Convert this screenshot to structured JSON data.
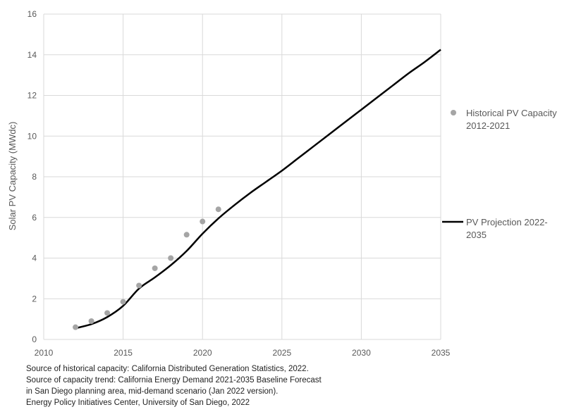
{
  "chart_data": {
    "type": "scatter",
    "title": "",
    "xlabel": "",
    "ylabel": "Solar PV Capacity (MWdc)",
    "xlim": [
      2010,
      2035
    ],
    "ylim": [
      0,
      16
    ],
    "x_ticks": [
      2010,
      2015,
      2020,
      2025,
      2030,
      2035
    ],
    "y_ticks": [
      0,
      2,
      4,
      6,
      8,
      10,
      12,
      14,
      16
    ],
    "grid": true,
    "legend_position": "right",
    "series": [
      {
        "name": "Historical PV Capacity 2012-2021",
        "legend_lines": [
          "Historical PV Capacity",
          "2012-2021"
        ],
        "type": "scatter",
        "color": "#a5a5a5",
        "x": [
          2012,
          2013,
          2014,
          2015,
          2016,
          2017,
          2018,
          2019,
          2020,
          2021
        ],
        "y": [
          0.6,
          0.9,
          1.3,
          1.85,
          2.65,
          3.5,
          4.0,
          5.15,
          5.8,
          6.4
        ]
      },
      {
        "name": "PV Projection 2022-2035",
        "legend_lines": [
          "PV Projection 2022-",
          "2035"
        ],
        "type": "line",
        "color": "#000000",
        "x": [
          2012,
          2013,
          2014,
          2015,
          2016,
          2017,
          2018,
          2019,
          2020,
          2021,
          2022,
          2023,
          2024,
          2025,
          2026,
          2027,
          2028,
          2029,
          2030,
          2031,
          2032,
          2033,
          2034,
          2035
        ],
        "y": [
          0.55,
          0.75,
          1.1,
          1.65,
          2.5,
          3.05,
          3.65,
          4.35,
          5.2,
          5.95,
          6.6,
          7.2,
          7.75,
          8.3,
          8.9,
          9.5,
          10.1,
          10.7,
          11.3,
          11.9,
          12.5,
          13.1,
          13.65,
          14.25
        ]
      }
    ]
  },
  "source_notes": [
    "Source of historical capacity: California Distributed Generation Statistics, 2022.",
    "Source of capacity trend: California Energy Demand 2021-2035 Baseline Forecast",
    "in San Diego planning area, mid-demand scenario (Jan 2022 version).",
    "Energy Policy Initiatives Center, University of San Diego, 2022"
  ],
  "colors": {
    "grid": "#d9d9d9",
    "axis_text": "#595959"
  }
}
